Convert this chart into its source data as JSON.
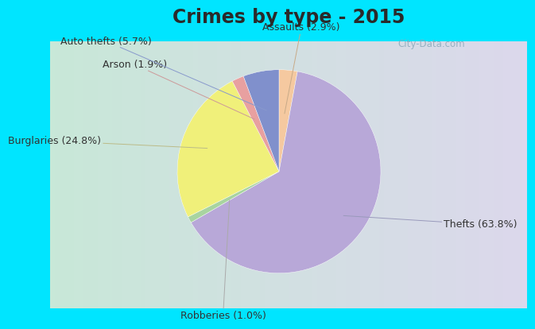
{
  "title": "Crimes by type - 2015",
  "labels": [
    "Thefts",
    "Burglaries",
    "Auto thefts",
    "Assaults",
    "Arson",
    "Robberies"
  ],
  "values": [
    63.8,
    24.8,
    5.7,
    2.9,
    1.9,
    1.0
  ],
  "colors": [
    "#b8a8d8",
    "#f0f07a",
    "#8090cc",
    "#f5c9a0",
    "#e8a0a0",
    "#a8d4a0"
  ],
  "label_texts": [
    "Thefts (63.8%)",
    "Burglaries (24.8%)",
    "Auto thefts (5.7%)",
    "Assaults (2.9%)",
    "Arson (1.9%)",
    "Robberies (1.0%)"
  ],
  "background_top": "#00e5ff",
  "title_fontsize": 17,
  "label_fontsize": 9,
  "watermark": "City-Data.com",
  "label_color": "#333333",
  "line_colors": {
    "Thefts": "#aaaacc",
    "Burglaries": "#cccc88",
    "Auto thefts": "#7788cc",
    "Assaults": "#ccaa88",
    "Arson": "#cc8888",
    "Robberies": "#aaaaaa"
  }
}
